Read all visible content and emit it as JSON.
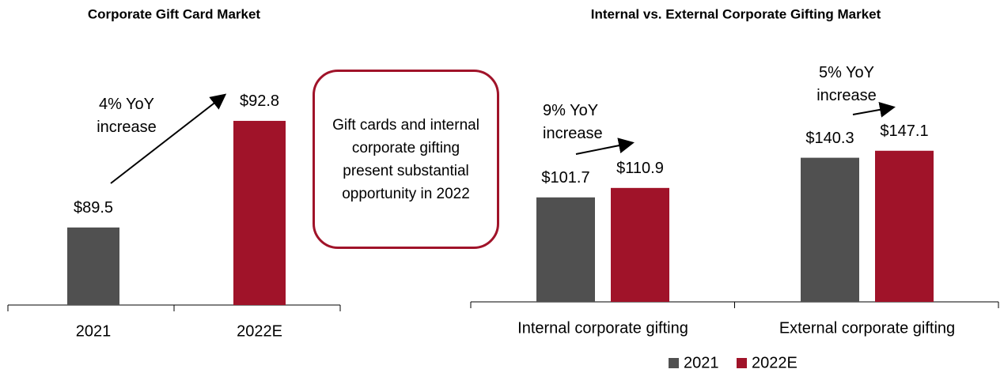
{
  "chart_data": [
    {
      "type": "bar",
      "title": "Corporate Gift Card Market",
      "categories": [
        "2021",
        "2022E"
      ],
      "values": [
        89.5,
        92.8
      ],
      "value_labels": [
        "$89.5",
        "$92.8"
      ],
      "colors": [
        "#505050",
        "#a01329"
      ],
      "ylim": [
        87.1,
        95
      ],
      "annotations": [
        "4% YoY increase"
      ]
    },
    {
      "type": "grouped_bar",
      "title": "Internal vs. External Corporate Gifting Market",
      "categories": [
        "Internal corporate gifting",
        "External corporate gifting"
      ],
      "series": [
        {
          "name": "2021",
          "color": "#505050",
          "values": [
            101.7,
            140.3
          ],
          "value_labels": [
            "$101.7",
            "$140.3"
          ]
        },
        {
          "name": "2022E",
          "color": "#a01329",
          "values": [
            110.9,
            147.1
          ],
          "value_labels": [
            "$110.9",
            "$147.1"
          ]
        }
      ],
      "ylim": [
        0,
        230
      ],
      "legend": "bottom",
      "annotations": [
        "9% YoY increase",
        "5% YoY increase"
      ]
    }
  ],
  "callout": "Gift cards and internal corporate gifting present substantial opportunity in 2022"
}
